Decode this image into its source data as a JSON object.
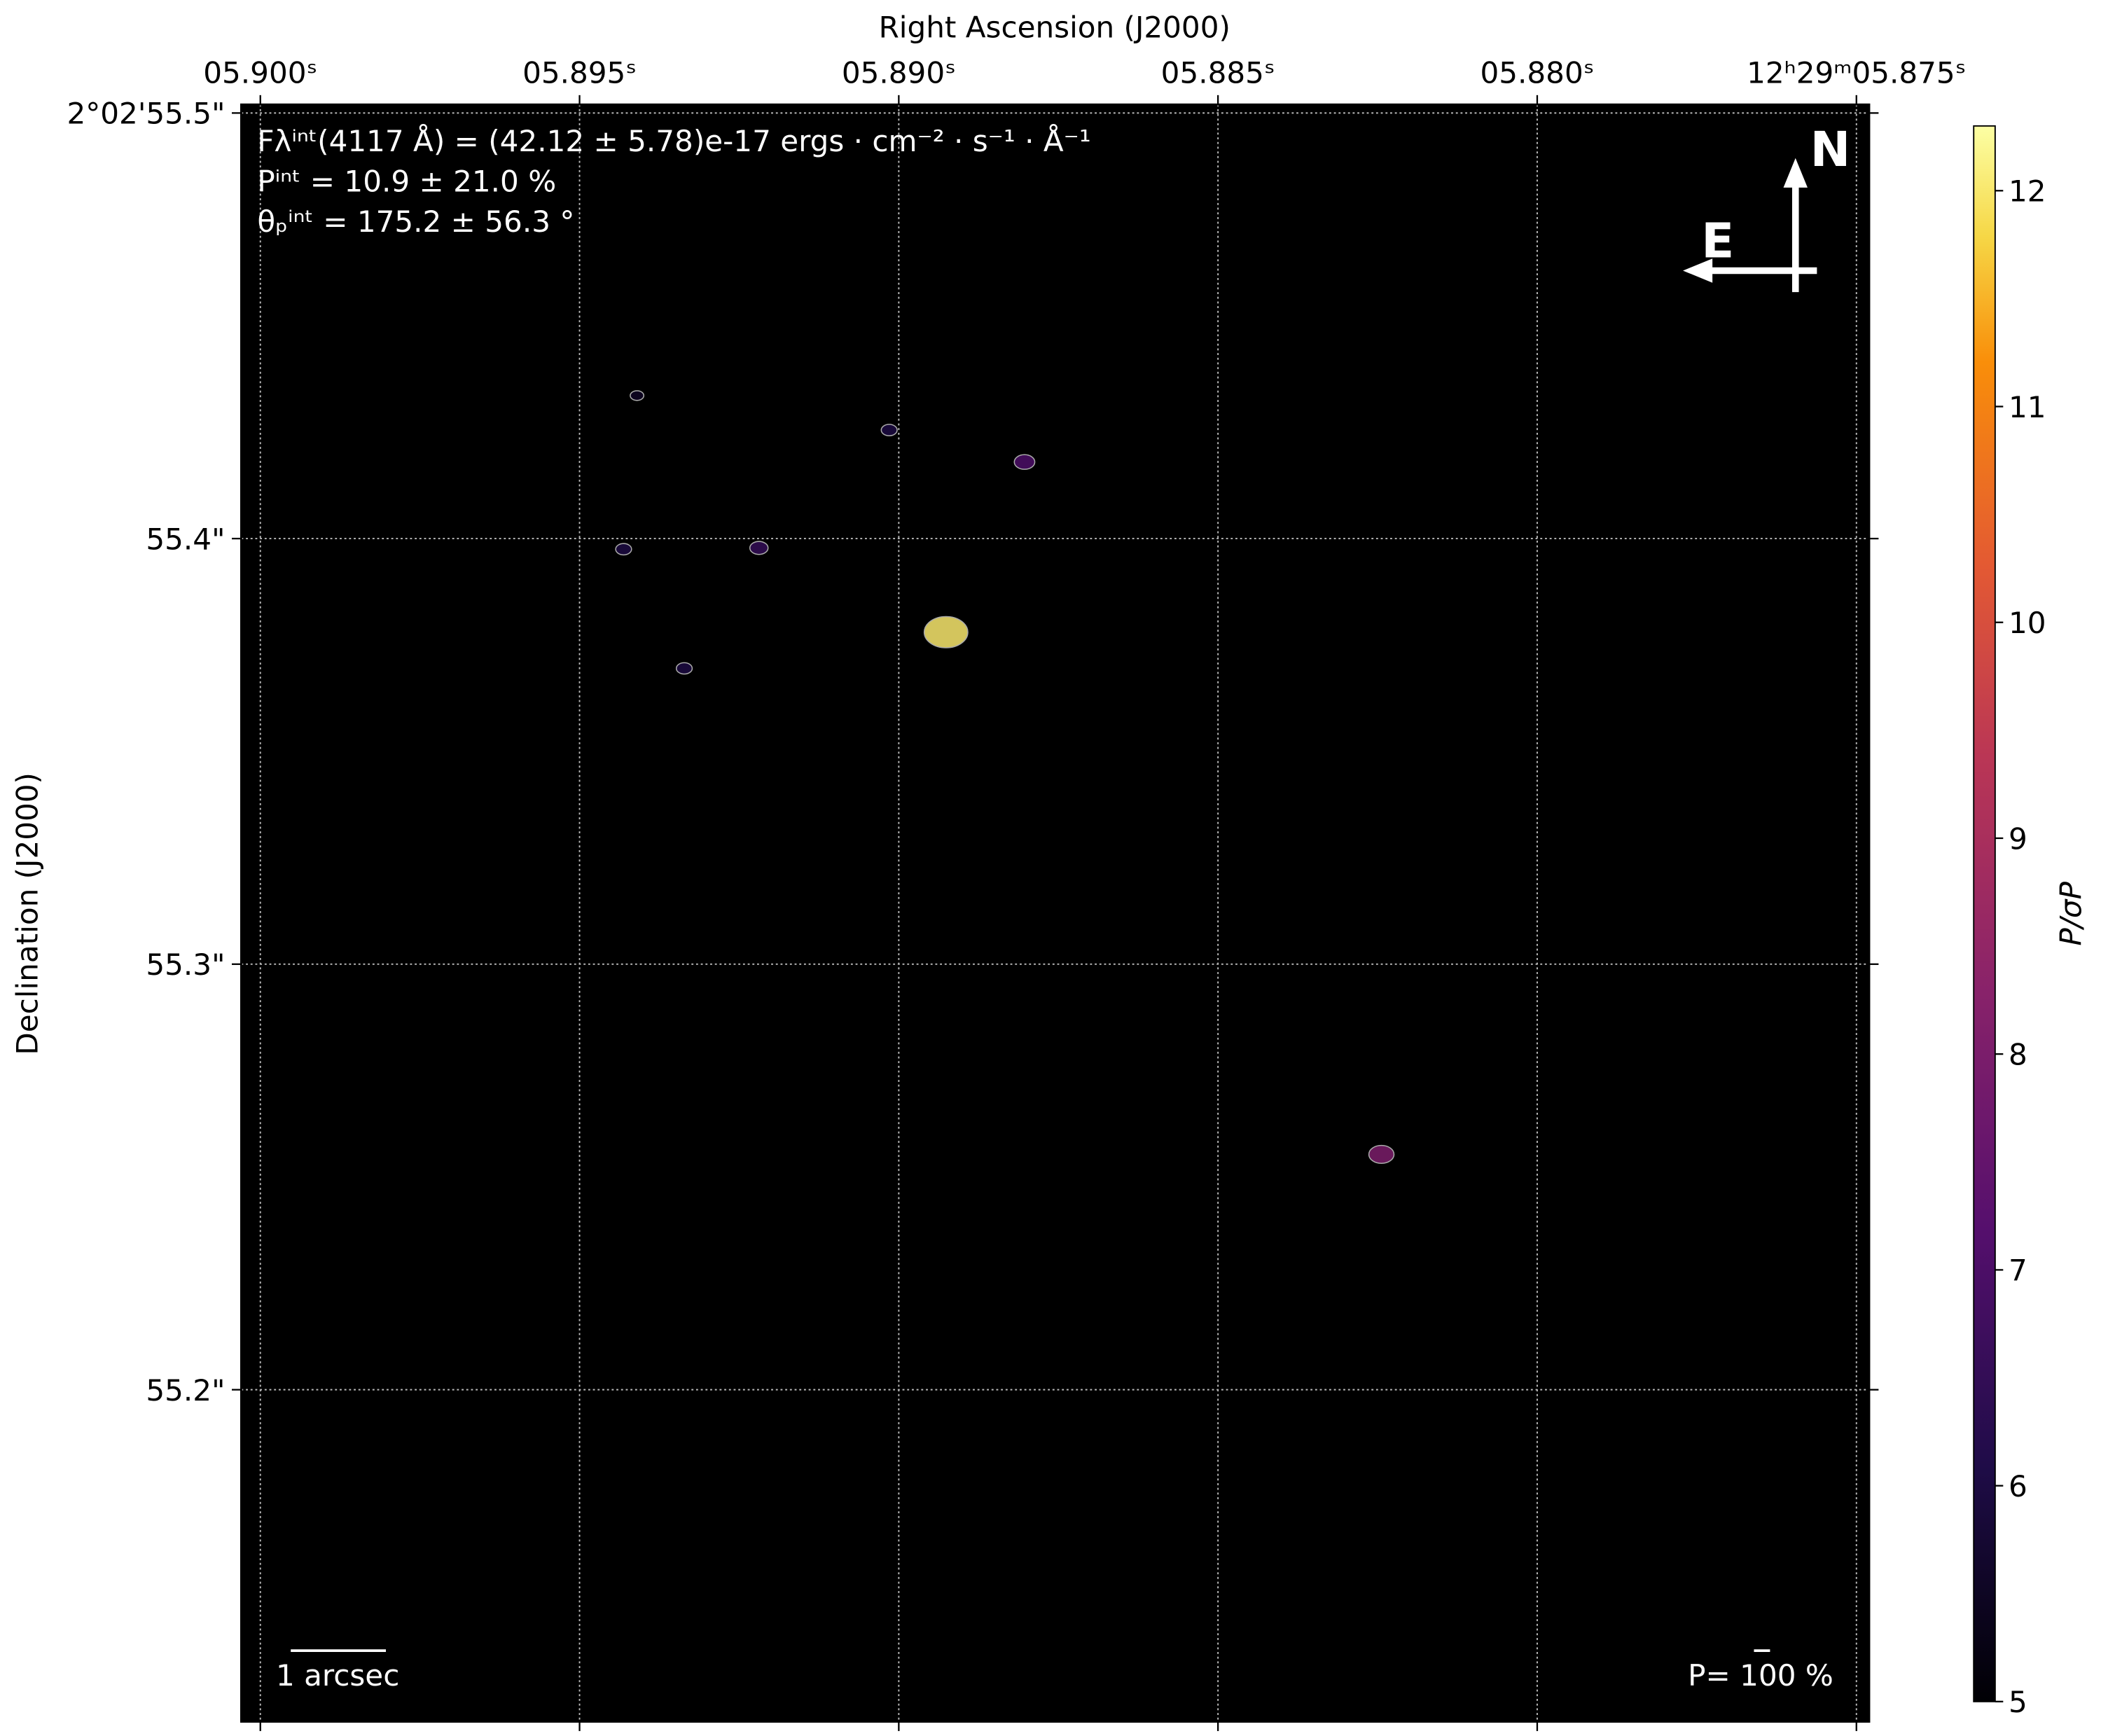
{
  "chart_data": {
    "type": "image",
    "xlabel": "Right Ascension (J2000)",
    "ylabel": "Declination (J2000)",
    "xlim": [
      5.9003,
      5.8748
    ],
    "xticks": [
      {
        "value": 5.9,
        "label": "05.900ˢ"
      },
      {
        "value": 5.895,
        "label": "05.895ˢ"
      },
      {
        "value": 5.89,
        "label": "05.890ˢ"
      },
      {
        "value": 5.885,
        "label": "05.885ˢ"
      },
      {
        "value": 5.88,
        "label": "05.880ˢ"
      },
      {
        "value": 5.875,
        "label": "12ʰ29ᵐ05.875ˢ"
      }
    ],
    "ylim": [
      55.122,
      55.502
    ],
    "yticks": [
      {
        "value": 55.5,
        "label": "2°02'55.5\""
      },
      {
        "value": 55.4,
        "label": "55.4\""
      },
      {
        "value": 55.3,
        "label": "55.3\""
      },
      {
        "value": 55.2,
        "label": "55.2\""
      }
    ],
    "grid": true,
    "background": "#000000",
    "colormap": "inferno",
    "zlim": [
      5,
      12.3
    ],
    "zticks": [
      5,
      6,
      7,
      8,
      9,
      10,
      11,
      12
    ],
    "colorbar_label": "P/σP",
    "sources": {
      "x": [
        5.88926,
        5.88244,
        5.88803,
        5.89015,
        5.89219,
        5.8941,
        5.89336,
        5.89431
      ],
      "y": [
        55.378,
        55.2553,
        55.418,
        55.4255,
        55.3978,
        55.4336,
        55.3695,
        55.3975
      ],
      "values": [
        12,
        8,
        7,
        6,
        6.5,
        5.5,
        6,
        6
      ]
    },
    "annotations": [
      "Fλⁱⁿᵗ(4117 Å) = (42.12 ± 5.78)e-17 ergs · cm⁻² · s⁻¹ · Å⁻¹",
      "Pⁱⁿᵗ = 10.9 ± 21.0 %",
      "θₚⁱⁿᵗ = 175.2 ± 56.3 °"
    ],
    "compass": {
      "north": "N",
      "east": "E"
    },
    "scale_bar": "1 arcsec",
    "vector_scale": "P= 100 %"
  }
}
